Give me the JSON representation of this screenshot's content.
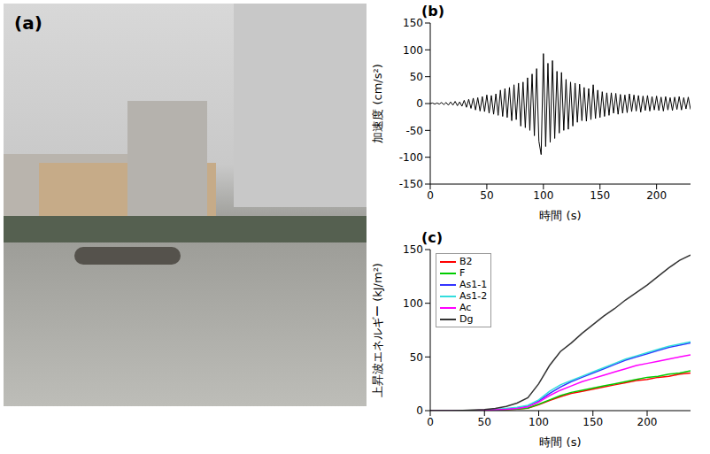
{
  "chart_data": [
    {
      "type": "photo",
      "title": "(a)"
    },
    {
      "type": "line",
      "title": "(b)",
      "x_label": "時間 (s)",
      "y_label": "加速度 (cm/s²)",
      "grid": false,
      "color": "#000000",
      "xlim": [
        0,
        230
      ],
      "xticks": [
        0,
        50,
        100,
        150,
        200
      ],
      "ylim": [
        -150,
        150
      ],
      "yticks": [
        -150,
        -100,
        -50,
        0,
        50,
        100,
        150
      ],
      "x": [
        0,
        2,
        4,
        6,
        8,
        10,
        12,
        14,
        16,
        18,
        20,
        22,
        24,
        26,
        28,
        30,
        32,
        34,
        36,
        38,
        40,
        42,
        44,
        46,
        48,
        50,
        52,
        54,
        56,
        58,
        60,
        62,
        64,
        66,
        68,
        70,
        72,
        74,
        76,
        78,
        80,
        82,
        84,
        86,
        88,
        90,
        92,
        94,
        96,
        98,
        100,
        102,
        104,
        106,
        108,
        110,
        112,
        114,
        116,
        118,
        120,
        122,
        124,
        126,
        128,
        130,
        132,
        134,
        136,
        138,
        140,
        142,
        144,
        146,
        148,
        150,
        152,
        154,
        156,
        158,
        160,
        162,
        164,
        166,
        168,
        170,
        172,
        174,
        176,
        178,
        180,
        182,
        184,
        186,
        188,
        190,
        192,
        194,
        196,
        198,
        200,
        202,
        204,
        206,
        208,
        210,
        212,
        214,
        216,
        218,
        220,
        222,
        224,
        226,
        228,
        230
      ],
      "values": [
        0,
        1,
        -1,
        1,
        -1,
        2,
        -2,
        2,
        -3,
        3,
        -3,
        4,
        -4,
        3,
        -5,
        6,
        -7,
        8,
        -9,
        10,
        -12,
        11,
        -14,
        13,
        -15,
        16,
        -18,
        15,
        -20,
        18,
        -22,
        25,
        -24,
        28,
        -26,
        30,
        -32,
        35,
        -30,
        38,
        -42,
        40,
        -45,
        48,
        -50,
        55,
        -60,
        65,
        -70,
        -95,
        93,
        -80,
        75,
        -72,
        80,
        -65,
        60,
        -55,
        58,
        -50,
        45,
        -48,
        40,
        -42,
        38,
        -35,
        36,
        -32,
        30,
        -33,
        28,
        -30,
        35,
        -28,
        25,
        -26,
        22,
        -24,
        20,
        -22,
        20,
        -18,
        19,
        -20,
        17,
        -18,
        16,
        -17,
        18,
        -15,
        16,
        -14,
        15,
        -16,
        14,
        -13,
        15,
        -14,
        13,
        -12,
        14,
        -13,
        12,
        -14,
        13,
        -12,
        11,
        -13,
        12,
        -11,
        13,
        -12,
        11,
        -10,
        12,
        -11
      ]
    },
    {
      "type": "line",
      "title": "(c)",
      "x_label": "時間 (s)",
      "y_label": "上昇波エネルギー (kJ/m²)",
      "grid": false,
      "legend": "top-left",
      "xlim": [
        0,
        240
      ],
      "xticks": [
        0,
        50,
        100,
        150,
        200
      ],
      "ylim": [
        0,
        150
      ],
      "yticks": [
        0,
        50,
        100,
        150
      ],
      "x": [
        0,
        10,
        20,
        30,
        40,
        50,
        60,
        70,
        80,
        90,
        100,
        110,
        120,
        130,
        140,
        150,
        160,
        170,
        180,
        190,
        200,
        210,
        220,
        230,
        240
      ],
      "series": [
        {
          "name": "B2",
          "color": "#ff0000",
          "values": [
            0,
            0,
            0,
            0.1,
            0.2,
            0.3,
            0.5,
            0.9,
            1.4,
            2.3,
            5.5,
            9.5,
            13,
            16,
            18,
            20,
            22,
            24,
            26,
            28,
            29,
            31,
            32,
            34,
            35
          ]
        },
        {
          "name": "F",
          "color": "#00cc00",
          "values": [
            0,
            0,
            0,
            0.1,
            0.2,
            0.3,
            0.6,
            1,
            1.5,
            2.5,
            6,
            10,
            14,
            17,
            19,
            21,
            23,
            25,
            27,
            29,
            31,
            32,
            34,
            35,
            37
          ]
        },
        {
          "name": "As1-1",
          "color": "#3333ff",
          "values": [
            0,
            0,
            0,
            0.1,
            0.3,
            0.5,
            1,
            1.5,
            2.5,
            4,
            9,
            16,
            22,
            27,
            31,
            35,
            39,
            43,
            47,
            50,
            53,
            56,
            59,
            61,
            63
          ]
        },
        {
          "name": "As1-2",
          "color": "#33dddd",
          "values": [
            0,
            0,
            0,
            0.1,
            0.3,
            0.5,
            1,
            2,
            3,
            5,
            10,
            18,
            24,
            28,
            32,
            36,
            40,
            44,
            48,
            51,
            54,
            57,
            60,
            62,
            64
          ]
        },
        {
          "name": "Ac",
          "color": "#ff00ff",
          "values": [
            0,
            0,
            0,
            0.1,
            0.2,
            0.4,
            0.8,
            1.2,
            2,
            3.5,
            8,
            14,
            19,
            23,
            27,
            30,
            33,
            36,
            39,
            42,
            44,
            46,
            48,
            50,
            52
          ]
        },
        {
          "name": "Dg",
          "color": "#333333",
          "values": [
            0,
            0,
            0,
            0.3,
            0.6,
            1,
            2,
            4,
            7,
            12,
            25,
            42,
            55,
            63,
            72,
            80,
            88,
            95,
            103,
            110,
            117,
            125,
            133,
            140,
            145
          ]
        }
      ]
    }
  ]
}
